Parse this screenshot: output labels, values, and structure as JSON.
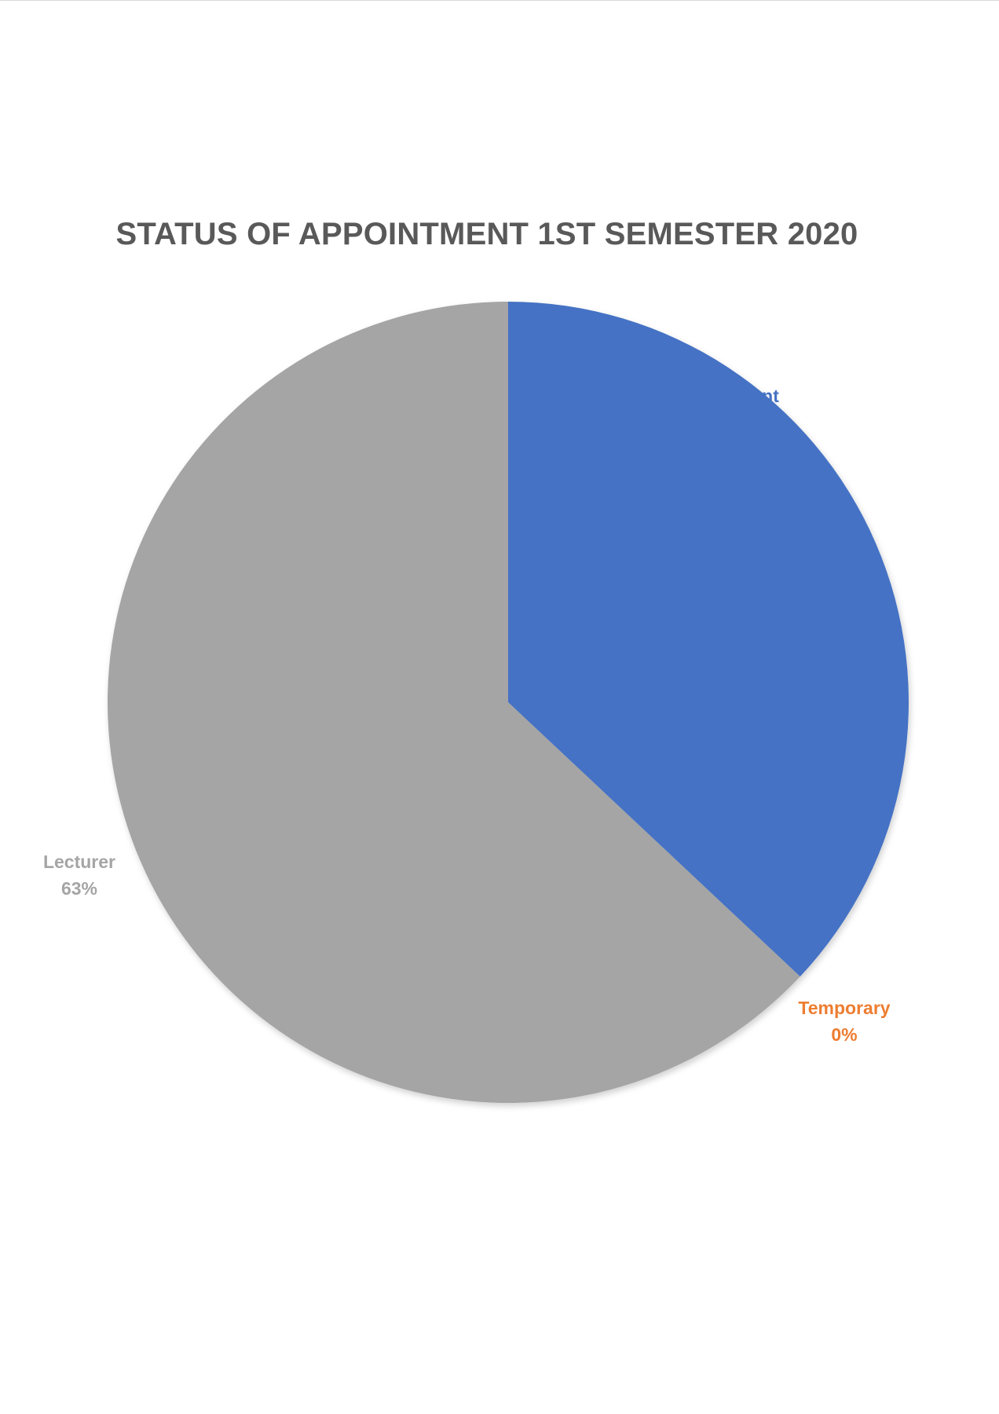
{
  "chart_data": {
    "type": "pie",
    "title": "STATUS OF APPOINTMENT 1ST SEMESTER 2020",
    "slices": [
      {
        "name": "Permanent",
        "percent": 37,
        "color": "#4472c4",
        "label_name": "nt",
        "label_value": ""
      },
      {
        "name": "Temporary",
        "percent": 0,
        "color": "#ed7d31",
        "label_name": "Temporary",
        "label_value": "0%"
      },
      {
        "name": "Lecturer",
        "percent": 63,
        "color": "#a5a5a5",
        "label_name": "Lecturer",
        "label_value": "63%"
      }
    ]
  }
}
